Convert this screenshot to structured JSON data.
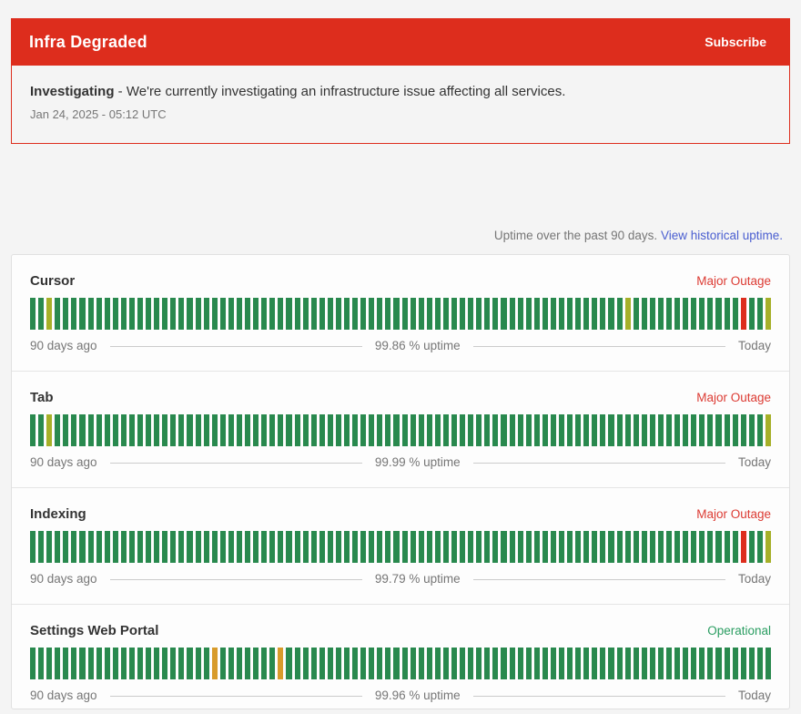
{
  "banner": {
    "title": "Infra Degraded",
    "subscribe_label": "Subscribe",
    "bg": "#dd2d1d",
    "text_color": "#ffffff"
  },
  "incident": {
    "status_label": "Investigating",
    "message": " - We're currently investigating an infrastructure issue affecting all services.",
    "timestamp": "Jan 24, 2025 - 05:12 UTC"
  },
  "legend": {
    "text": "Uptime over the past 90 days.",
    "link_label": "View historical uptime.",
    "link_color": "#4a5ed0"
  },
  "uptime_colors": {
    "operational": "#29894e",
    "degraded": "#a6b028",
    "partial": "#d89b2b",
    "major": "#dd2d1d"
  },
  "status_colors": {
    "Major Outage": "#dc3b33",
    "Operational": "#2a9d61"
  },
  "footer_labels": {
    "left": "90 days ago",
    "right": "Today"
  },
  "services": [
    {
      "name": "Cursor",
      "status": "Major Outage",
      "uptime": "99.86 % uptime",
      "bars": {
        "total": 90,
        "default": "operational",
        "exceptions": {
          "3": "degraded",
          "73": "degraded",
          "87": "major",
          "90": "degraded"
        }
      }
    },
    {
      "name": "Tab",
      "status": "Major Outage",
      "uptime": "99.99 % uptime",
      "bars": {
        "total": 90,
        "default": "operational",
        "exceptions": {
          "3": "degraded",
          "90": "degraded"
        }
      }
    },
    {
      "name": "Indexing",
      "status": "Major Outage",
      "uptime": "99.79 % uptime",
      "bars": {
        "total": 90,
        "default": "operational",
        "exceptions": {
          "87": "major",
          "90": "degraded"
        }
      }
    },
    {
      "name": "Settings Web Portal",
      "status": "Operational",
      "uptime": "99.96 % uptime",
      "bars": {
        "total": 90,
        "default": "operational",
        "exceptions": {
          "23": "partial",
          "31": "partial"
        }
      }
    }
  ]
}
